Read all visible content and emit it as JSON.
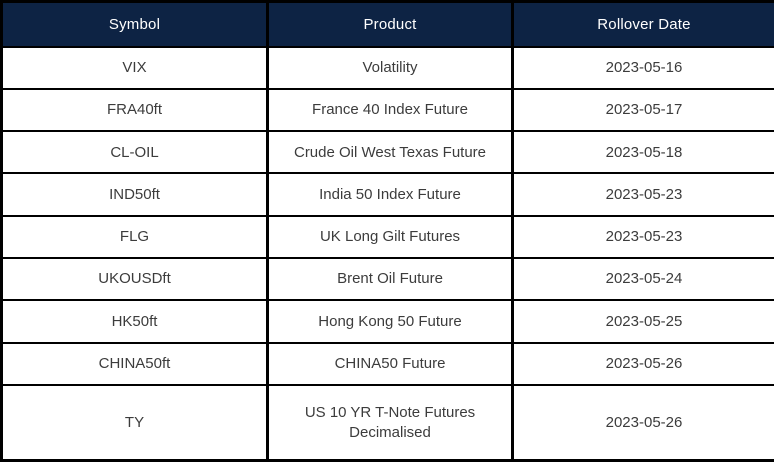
{
  "chart_data": {
    "type": "table",
    "columns": [
      "Symbol",
      "Product",
      "Rollover Date"
    ],
    "rows": [
      [
        "VIX",
        "Volatility",
        "2023-05-16"
      ],
      [
        "FRA40ft",
        "France 40 Index Future",
        "2023-05-17"
      ],
      [
        "CL-OIL",
        "Crude Oil West Texas Future",
        "2023-05-18"
      ],
      [
        "IND50ft",
        "India 50 Index Future",
        "2023-05-23"
      ],
      [
        "FLG",
        "UK Long Gilt Futures",
        "2023-05-23"
      ],
      [
        "UKOUSDft",
        "Brent Oil Future",
        "2023-05-24"
      ],
      [
        "HK50ft",
        "Hong Kong 50 Future",
        "2023-05-25"
      ],
      [
        "CHINA50ft",
        "CHINA50 Future",
        "2023-05-26"
      ],
      [
        "TY",
        "US 10 YR T-Note Futures Decimalised",
        "2023-05-26"
      ]
    ]
  },
  "colors": {
    "header_bg": "#0d2344",
    "header_text": "#ffffff",
    "body_text": "#3c3c3c",
    "row_bg": "#ffffff",
    "border": "#000000"
  }
}
